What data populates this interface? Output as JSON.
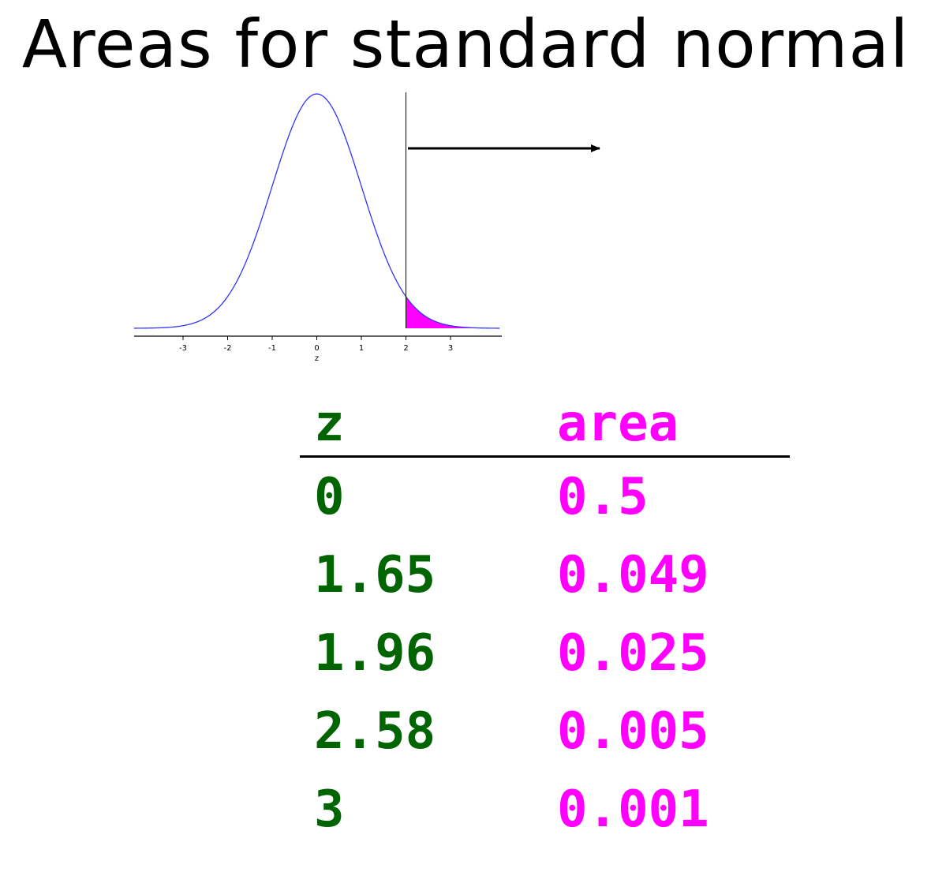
{
  "title": "Areas for standard normal",
  "colors": {
    "z_column": "#006400",
    "area_column": "#ff00ff",
    "curve": "#3333ff",
    "tail_fill": "#ff00ff",
    "axis": "#000000"
  },
  "chart_data": [
    {
      "type": "area",
      "title": "",
      "xlabel": "z",
      "ylabel": "",
      "xlim": [
        -4.1,
        4.1
      ],
      "x_ticks": [
        -3,
        -2,
        -1,
        0,
        1,
        2,
        3
      ],
      "x_tick_labels": [
        "-3",
        "-2",
        "-1",
        "0",
        "1",
        "2",
        "3"
      ],
      "series": [
        {
          "function": "standard normal density",
          "mean": 0,
          "sd": 1
        }
      ],
      "shaded_region": {
        "from": 2,
        "to": 4.1
      },
      "vertical_line_at": 2,
      "annotation": "arrow pointing right",
      "grid": false,
      "legend": "none"
    },
    {
      "type": "table",
      "headers": [
        "z",
        "area"
      ],
      "rows": [
        [
          "0",
          "0.5"
        ],
        [
          "1.65",
          "0.049"
        ],
        [
          "1.96",
          "0.025"
        ],
        [
          "2.58",
          "0.005"
        ],
        [
          "3",
          "0.001"
        ]
      ]
    }
  ]
}
